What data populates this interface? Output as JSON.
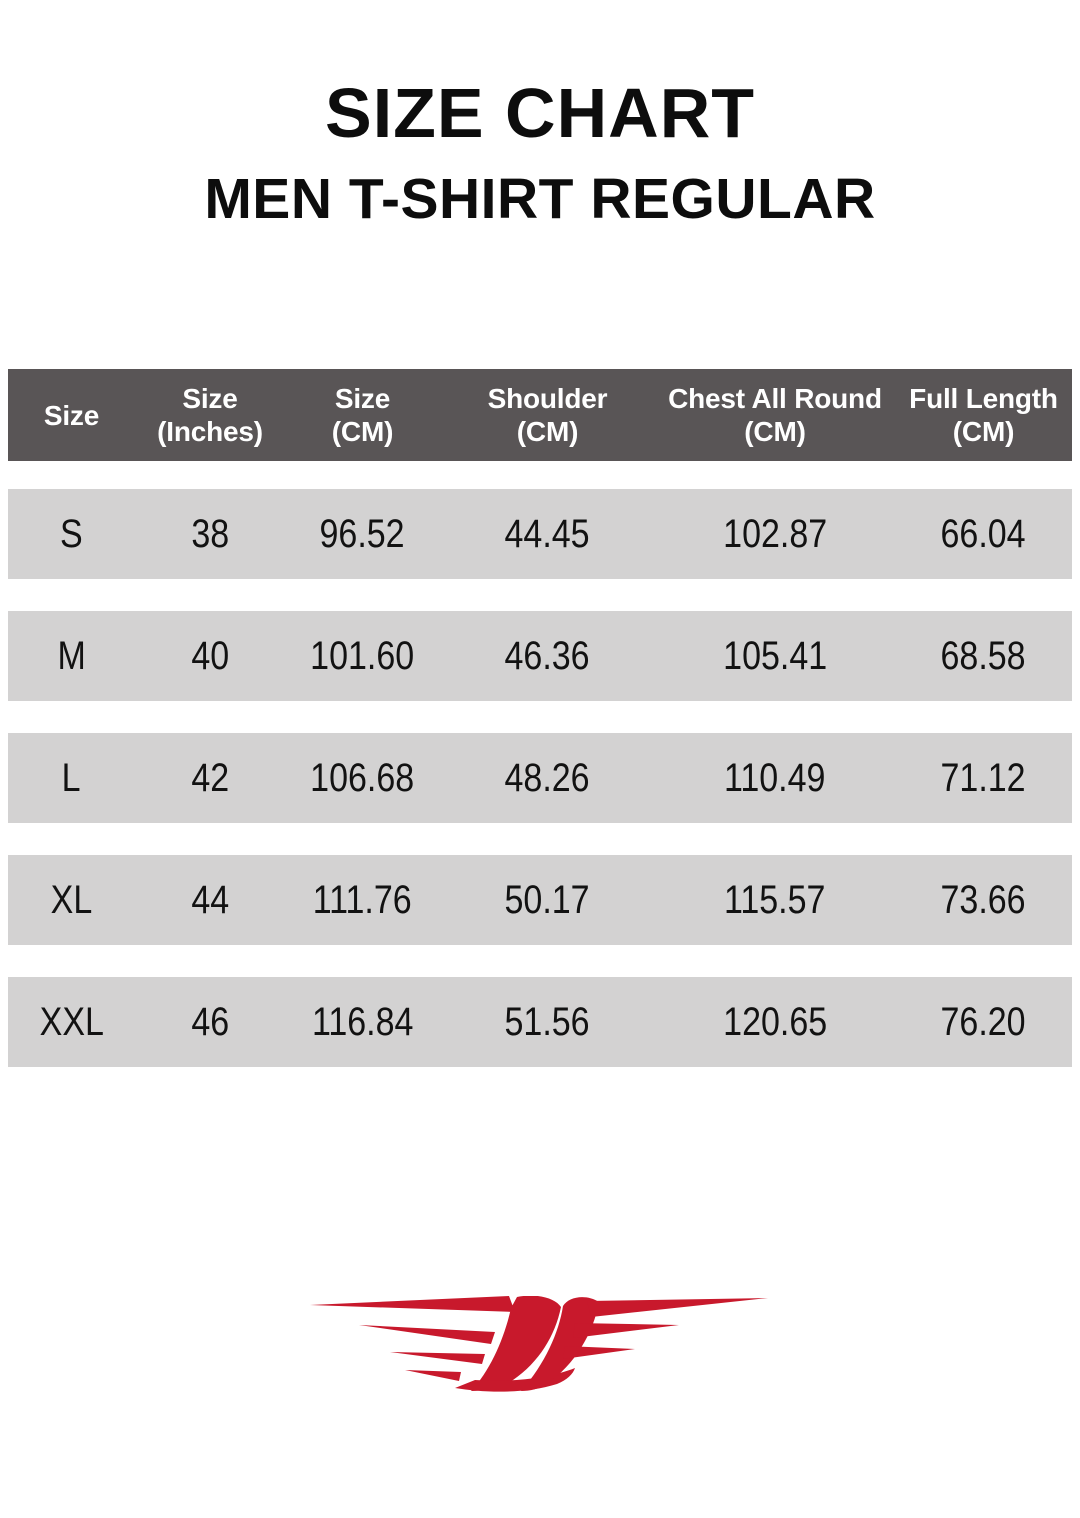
{
  "header": {
    "title": "SIZE CHART",
    "subtitle": "MEN T-SHIRT REGULAR"
  },
  "table": {
    "columns": [
      {
        "key": "size",
        "line1": "Size",
        "line2": ""
      },
      {
        "key": "size-inches",
        "line1": "Size",
        "line2": "(Inches)"
      },
      {
        "key": "size-cm",
        "line1": "Size",
        "line2": "(CM)"
      },
      {
        "key": "shoulder-cm",
        "line1": "Shoulder",
        "line2": "(CM)"
      },
      {
        "key": "chest-cm",
        "line1": "Chest All Round",
        "line2": "(CM)"
      },
      {
        "key": "length-cm",
        "line1": "Full Length",
        "line2": "(CM)"
      }
    ],
    "rows": [
      [
        "S",
        "38",
        "96.52",
        "44.45",
        "102.87",
        "66.04"
      ],
      [
        "M",
        "40",
        "101.60",
        "46.36",
        "105.41",
        "68.58"
      ],
      [
        "L",
        "42",
        "106.68",
        "48.26",
        "110.49",
        "71.12"
      ],
      [
        "XL",
        "44",
        "111.76",
        "50.17",
        "115.57",
        "73.66"
      ],
      [
        "XXL",
        "46",
        "116.84",
        "51.56",
        "120.65",
        "76.20"
      ]
    ]
  },
  "logo": {
    "name": "red-wing-emblem"
  },
  "colors": {
    "header_bg": "#595556",
    "row_bg": "#D3D2D2",
    "logo_red": "#C8192C",
    "text": "#121212"
  }
}
